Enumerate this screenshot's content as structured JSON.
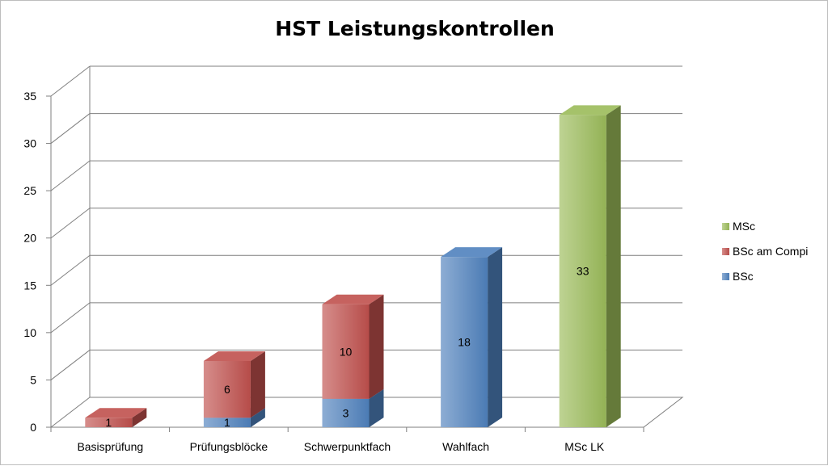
{
  "chart_data": {
    "type": "bar",
    "stacked": true,
    "title": "HST Leistungskontrollen",
    "categories": [
      "Basisprüfung",
      "Prüfungsblöcke",
      "Schwerpunktfach",
      "Wahlfach",
      "MSc LK"
    ],
    "series": [
      {
        "name": "BSc",
        "values": [
          0,
          1,
          3,
          18,
          0
        ],
        "color": "#4f81bd"
      },
      {
        "name": "BSc am Compi",
        "values": [
          1,
          6,
          10,
          0,
          0
        ],
        "color": "#c0504d"
      },
      {
        "name": "MSc",
        "values": [
          0,
          0,
          0,
          0,
          33
        ],
        "color": "#9bbb59"
      }
    ],
    "ylim": [
      0,
      35
    ],
    "yticks": [
      0,
      5,
      10,
      15,
      20,
      25,
      30,
      35
    ],
    "grid": true,
    "legend": {
      "position": "right",
      "order": [
        "MSc",
        "BSc am Compi",
        "BSc"
      ]
    },
    "xlabel": "",
    "ylabel": ""
  }
}
